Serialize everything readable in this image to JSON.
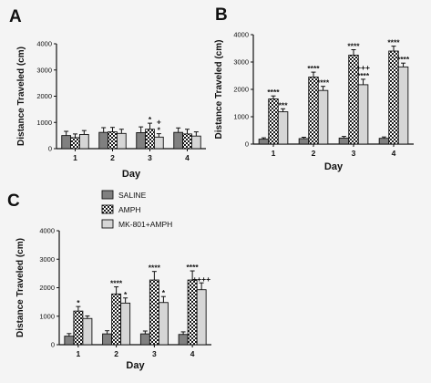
{
  "legend_colors": {
    "SALINE": "#808080",
    "AMPH": "checker",
    "MK-801+AMPH": "#d6d6d6"
  },
  "chart_data": [
    {
      "panel": "A",
      "type": "bar",
      "xlabel": "Day",
      "ylabel": "Distance Traveled (cm)",
      "ylim": [
        0,
        4000
      ],
      "yticks": [
        "0",
        "1000",
        "2000",
        "3000",
        "4000"
      ],
      "categories": [
        "1",
        "2",
        "3",
        "4"
      ],
      "series": [
        {
          "name": "SALINE",
          "values": [
            500,
            620,
            610,
            620
          ],
          "errors": [
            160,
            180,
            220,
            170
          ]
        },
        {
          "name": "AMPH",
          "values": [
            420,
            640,
            740,
            560
          ],
          "errors": [
            140,
            170,
            230,
            180
          ]
        },
        {
          "name": "MK-801+AMPH",
          "values": [
            540,
            580,
            440,
            480
          ],
          "errors": [
            150,
            160,
            130,
            160
          ]
        }
      ],
      "annotations": [
        {
          "category": 2,
          "series": 1,
          "lines": [
            "*"
          ]
        },
        {
          "category": 2,
          "series": 2,
          "lines": [
            "+",
            "*"
          ]
        }
      ]
    },
    {
      "panel": "B",
      "type": "bar",
      "xlabel": "Day",
      "ylabel": "Distance Traveled (cm)",
      "ylim": [
        0,
        4000
      ],
      "yticks": [
        "0",
        "1000",
        "2000",
        "3000",
        "4000"
      ],
      "categories": [
        "1",
        "2",
        "3",
        "4"
      ],
      "series": [
        {
          "name": "SALINE",
          "values": [
            180,
            200,
            220,
            210
          ],
          "errors": [
            50,
            50,
            60,
            50
          ]
        },
        {
          "name": "AMPH",
          "values": [
            1650,
            2450,
            3250,
            3400
          ],
          "errors": [
            110,
            180,
            200,
            180
          ]
        },
        {
          "name": "MK-801+AMPH",
          "values": [
            1180,
            1960,
            2170,
            2820
          ],
          "errors": [
            110,
            150,
            200,
            140
          ]
        }
      ],
      "annotations": [
        {
          "category": 0,
          "series": 1,
          "lines": [
            "****"
          ]
        },
        {
          "category": 0,
          "series": 2,
          "lines": [
            "***"
          ]
        },
        {
          "category": 1,
          "series": 1,
          "lines": [
            "****"
          ]
        },
        {
          "category": 1,
          "series": 2,
          "lines": [
            "****"
          ]
        },
        {
          "category": 2,
          "series": 1,
          "lines": [
            "****"
          ]
        },
        {
          "category": 2,
          "series": 2,
          "lines": [
            "+++",
            "****"
          ]
        },
        {
          "category": 3,
          "series": 1,
          "lines": [
            "****"
          ]
        },
        {
          "category": 3,
          "series": 2,
          "lines": [
            "****"
          ]
        }
      ]
    },
    {
      "panel": "C",
      "type": "bar",
      "xlabel": "Day",
      "ylabel": "Distance Traveled (cm)",
      "ylim": [
        0,
        4000
      ],
      "yticks": [
        "0",
        "1000",
        "2000",
        "3000",
        "4000"
      ],
      "categories": [
        "1",
        "2",
        "3",
        "4"
      ],
      "series": [
        {
          "name": "SALINE",
          "values": [
            300,
            380,
            380,
            360
          ],
          "errors": [
            90,
            110,
            100,
            90
          ]
        },
        {
          "name": "AMPH",
          "values": [
            1180,
            1780,
            2270,
            2270
          ],
          "errors": [
            160,
            250,
            300,
            320
          ]
        },
        {
          "name": "MK-801+AMPH",
          "values": [
            920,
            1460,
            1480,
            1930
          ],
          "errors": [
            90,
            180,
            210,
            240
          ]
        }
      ],
      "annotations": [
        {
          "category": 0,
          "series": 1,
          "lines": [
            "*"
          ]
        },
        {
          "category": 1,
          "series": 1,
          "lines": [
            "****"
          ]
        },
        {
          "category": 1,
          "series": 2,
          "lines": [
            "*"
          ]
        },
        {
          "category": 2,
          "series": 1,
          "lines": [
            "****"
          ]
        },
        {
          "category": 2,
          "series": 2,
          "lines": [
            "*"
          ]
        },
        {
          "category": 3,
          "series": 1,
          "lines": [
            "****"
          ]
        },
        {
          "category": 3,
          "series": 2,
          "lines": [
            "++++"
          ]
        }
      ]
    }
  ]
}
